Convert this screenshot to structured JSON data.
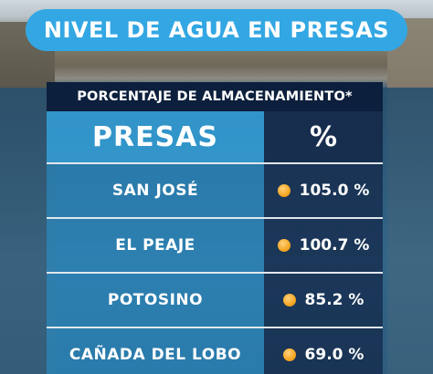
{
  "title": "NIVEL DE AGUA EN PRESAS",
  "subtitle": "PORCENTAJE DE ALMACENAMIENTO*",
  "columns": {
    "name": "PRESAS",
    "value": "%"
  },
  "rows": [
    {
      "name": "SAN JOSÉ",
      "value": "105.0 %"
    },
    {
      "name": "EL PEAJE",
      "value": "100.7 %"
    },
    {
      "name": "POTOSINO",
      "value": "85.2 %"
    },
    {
      "name": "CAÑADA DEL LOBO",
      "value": "69.0 %"
    }
  ],
  "colors": {
    "title_bg": "#33a7e3",
    "header_dark": "#0c1f3c",
    "dot": "#f5a623"
  },
  "icons": {
    "status_dot": "orange-circle-icon"
  }
}
